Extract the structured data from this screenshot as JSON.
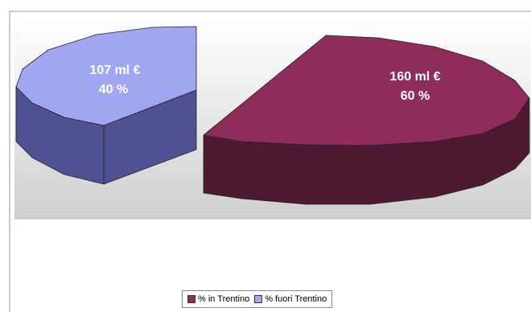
{
  "chart_data": {
    "type": "pie",
    "style": "3d-exploded",
    "slices": [
      {
        "name": "% in Trentino",
        "value": 160,
        "unit": "ml €",
        "percent": 60,
        "label_value": "160 ml €",
        "label_percent": "60 %",
        "color": "#8e2d5b",
        "side_color": "#4d1a32"
      },
      {
        "name": "% fuori Trentino",
        "value": 107,
        "unit": "ml €",
        "percent": 40,
        "label_value": "107 ml €",
        "label_percent": "40 %",
        "color": "#a0a6f2",
        "side_color": "#4f5193"
      }
    ],
    "legend": {
      "position": "bottom",
      "items": [
        {
          "label": "% in Trentino",
          "color": "#8e2d5b"
        },
        {
          "label": "% fuori Trentino",
          "color": "#a0a6f2"
        }
      ]
    },
    "plot_area": {
      "top_color": "#ffffff",
      "bottom_color": "#cfcfcf",
      "border_color": "#9a9a9a"
    }
  }
}
